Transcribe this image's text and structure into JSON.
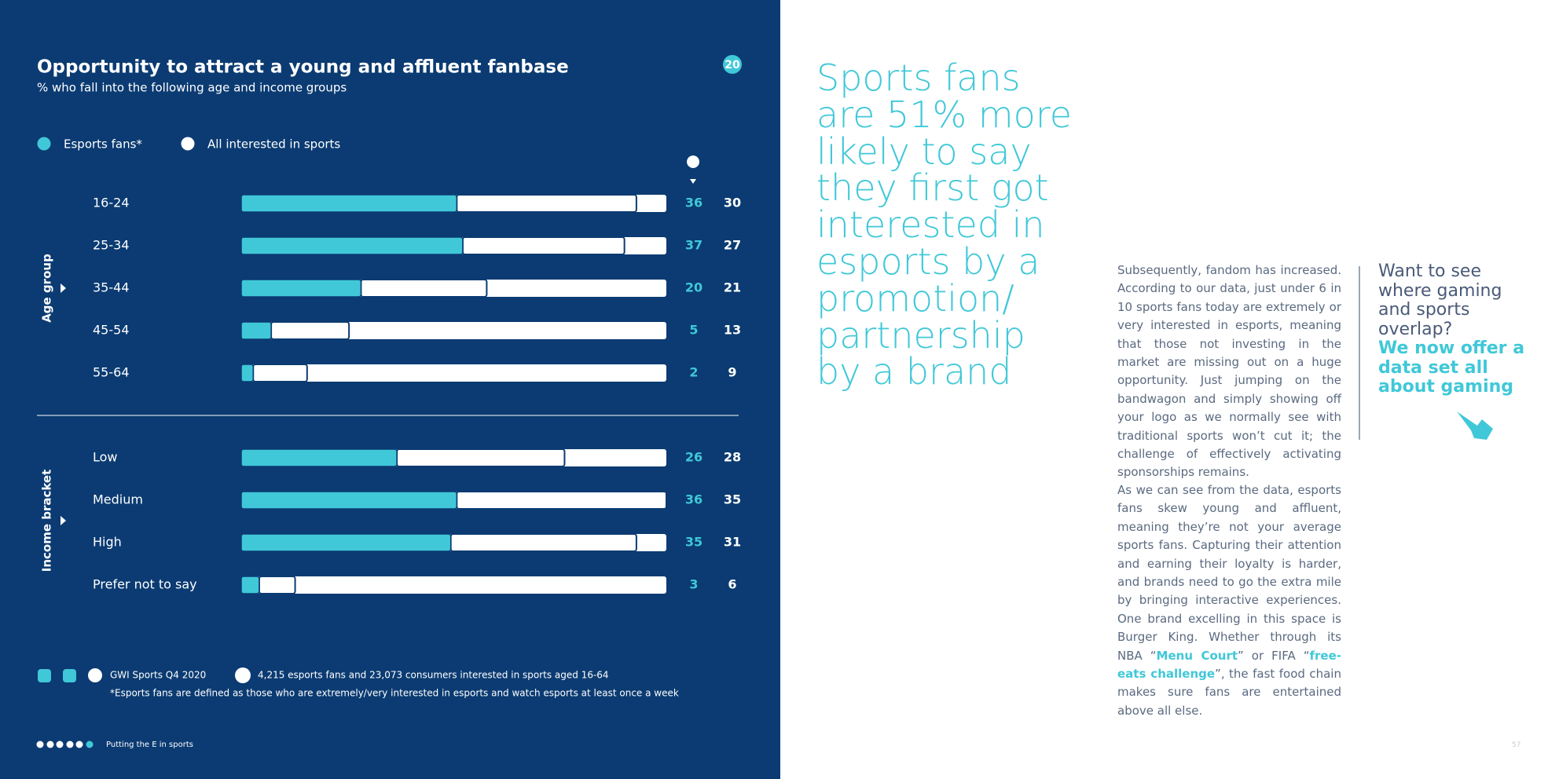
{
  "header": {
    "title": "Opportunity to attract a young and affluent fanbase",
    "subtitle": "% who fall into the following age and income groups",
    "badge": "20"
  },
  "chart_data": [
    {
      "type": "bar",
      "title": "Age group",
      "categories": [
        "16-24",
        "25-34",
        "35-44",
        "45-54",
        "55-64"
      ],
      "xlim": [
        0,
        71
      ],
      "stacked": true,
      "series": [
        {
          "name": "Esports fans*",
          "color": "#40c8d8",
          "values": [
            36,
            37,
            20,
            5,
            2
          ]
        },
        {
          "name": "All interested in sports",
          "color": "#ffffff",
          "values": [
            30,
            27,
            21,
            13,
            9
          ]
        }
      ]
    },
    {
      "type": "bar",
      "title": "Income bracket",
      "categories": [
        "Low",
        "Medium",
        "High",
        "Prefer not to say"
      ],
      "xlim": [
        0,
        71
      ],
      "stacked": true,
      "series": [
        {
          "color": "#40c8d8",
          "values": [
            26,
            36,
            35,
            3
          ]
        },
        {
          "color": "#ffffff",
          "values": [
            28,
            35,
            31,
            6
          ]
        }
      ]
    }
  ],
  "footer": {
    "source": "GWI Sports Q4 2020",
    "sample": "4,215 esports fans and 23,073 consumers interested in sports aged 16-64",
    "note": "*Esports fans are defined as those who are extremely/very interested in esports and watch esports at least once a week",
    "section": "Putting the E in sports"
  },
  "quote_lines": [
    "Sports fans",
    "are 51% more",
    "likely to say",
    "they first got",
    "interested in",
    "esports by a",
    "promotion/",
    "partnership",
    "by a brand"
  ],
  "paragraph_1": "Subsequently, fandom has increased. According to our data, just under 6 in 10 sports fans today are extremely or very interested in esports, meaning that those not investing in the market are missing out on a huge opportunity. Just jumping on the bandwagon and simply showing off your logo as we normally see with traditional sports won’t cut it; the challenge of effectively activating sponsorships remains.",
  "paragraph_2": [
    "As we can see from the data, esports fans skew young and affluent, meaning they’re not your average sports fans. Capturing their attention and earning their loyalty is harder, and brands need to go the extra mile by bringing interactive experiences. One brand excelling in this space is Burger King. Whether through its NBA “",
    "Menu Court",
    "” or FIFA “",
    "free-eats challenge",
    "”, the fast food chain makes sure fans are entertained above all else."
  ],
  "callout": {
    "question": "Want to see where gaming and sports overlap?",
    "answer": "We now offer a data set all about gaming"
  },
  "page_number": "57"
}
